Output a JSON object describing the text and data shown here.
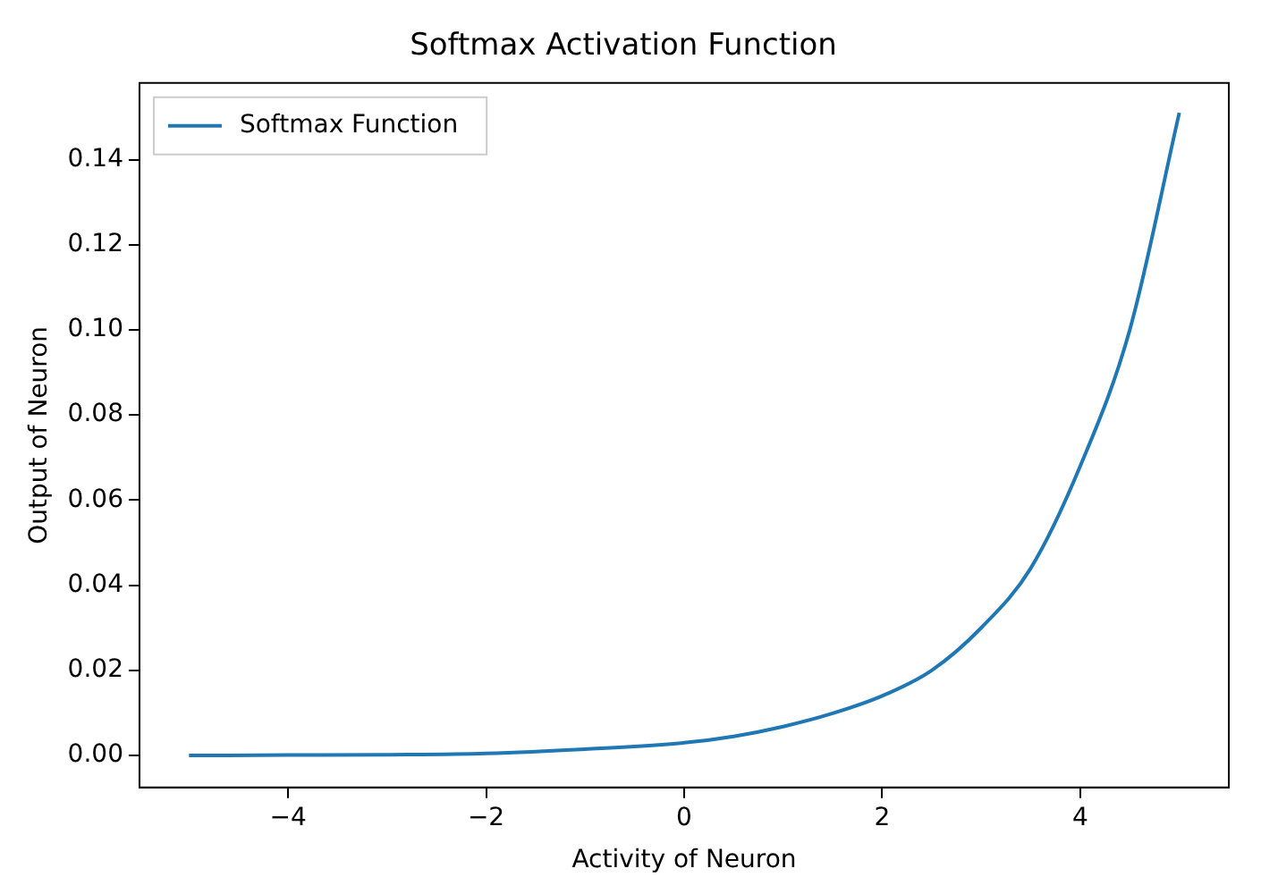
{
  "chart_data": {
    "type": "line",
    "title": "Softmax Activation Function",
    "xlabel": "Activity of Neuron",
    "ylabel": "Output of Neuron",
    "x": [
      -5,
      -4,
      -3,
      -2,
      -1,
      0,
      0.5,
      1,
      1.5,
      2,
      2.5,
      3,
      3.5,
      4,
      4.5,
      5
    ],
    "series": [
      {
        "name": "Softmax Function",
        "color": "#1f77b4",
        "values": [
          0.0,
          0.0001,
          0.0002,
          0.0005,
          0.0015,
          0.003,
          0.0045,
          0.0068,
          0.0099,
          0.014,
          0.02,
          0.03,
          0.044,
          0.068,
          0.1,
          0.151
        ]
      }
    ],
    "xlim": [
      -5.5,
      5.5
    ],
    "xticks": [
      {
        "value": -4,
        "label": "−4"
      },
      {
        "value": -2,
        "label": "−2"
      },
      0,
      2,
      4
    ],
    "ylim": [
      -0.0075,
      0.158
    ],
    "yticks": [
      {
        "value": 0,
        "label": "0.00"
      },
      {
        "value": 0.02,
        "label": "0.02"
      },
      {
        "value": 0.04,
        "label": "0.04"
      },
      {
        "value": 0.06,
        "label": "0.06"
      },
      {
        "value": 0.08,
        "label": "0.08"
      },
      {
        "value": 0.1,
        "label": "0.10"
      },
      {
        "value": 0.12,
        "label": "0.12"
      },
      {
        "value": 0.14,
        "label": "0.14"
      }
    ],
    "legend": "top left",
    "grid": false,
    "marker": "none",
    "line_style": "solid"
  }
}
